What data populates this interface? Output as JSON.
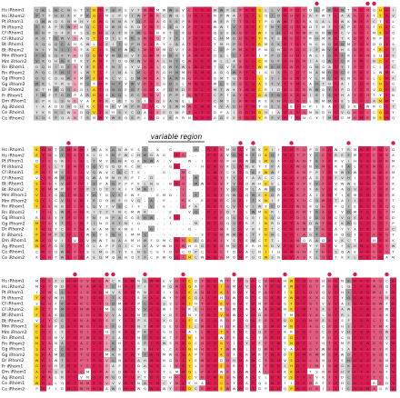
{
  "species": [
    "Hs iRhom1",
    "Hs iRhom2",
    "Pt iRhom1",
    "Pt iRhom2",
    "Cf iRhom1",
    "Cf iRhom2",
    "Bt iRhom1",
    "Bt iRhom2",
    "Mm iRhom1",
    "Mm iRhom2",
    "Rn iRhom1",
    "Rn iRhom2",
    "Gg iRhom1",
    "Gg iRhom2",
    "Dr iRhom2",
    "Fr iRhom1",
    "Dm iRhom1",
    "Ag iRhom1",
    "Ce iRhom1",
    "Ce iRhom2"
  ],
  "variable_region_label": "variable region",
  "colors": {
    "invariant": "#d81b4e",
    "strong": "#e25b7e",
    "medium": "#eda0b3",
    "similar": "#ffd21a",
    "grey_dark": "#9e9e9e",
    "grey_mid": "#bdbdbd",
    "grey_light": "#dcdcdc",
    "background": "#ffffff",
    "dot": "#d81b4e"
  }
}
